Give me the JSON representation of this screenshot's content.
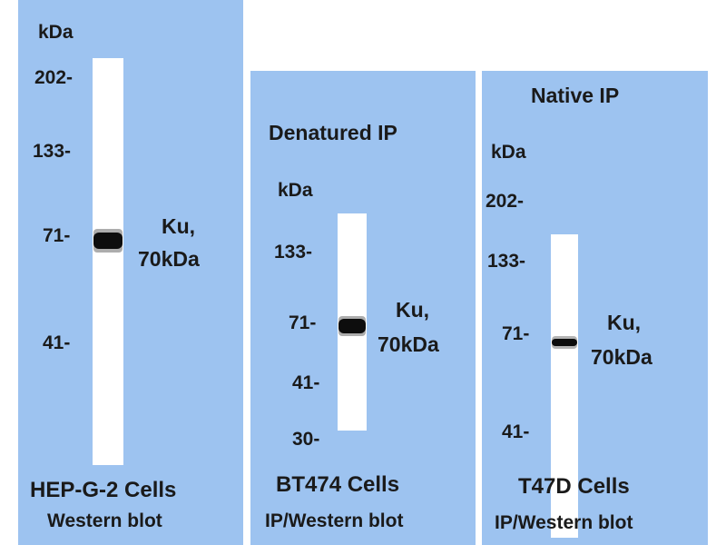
{
  "colors": {
    "panel": "#9dc3f0",
    "lane": "#ffffff",
    "text": "#1a1a1a",
    "band": "#0d0d0d"
  },
  "panels": [
    {
      "kda_label": "kDa",
      "markers": [
        "202-",
        "133-",
        "71-",
        "41-"
      ],
      "band_label_line1": "Ku,",
      "band_label_line2": "70kDa",
      "cells": "HEP-G-2 Cells",
      "method": "Western blot"
    },
    {
      "header": "Denatured IP",
      "kda_label": "kDa",
      "markers": [
        "133-",
        "71-",
        "41-",
        "30-"
      ],
      "band_label_line1": "Ku,",
      "band_label_line2": "70kDa",
      "cells": "BT474 Cells",
      "method": "IP/Western blot"
    },
    {
      "header": "Native IP",
      "kda_label": "kDa",
      "markers": [
        "202-",
        "133-",
        "71-",
        "41-"
      ],
      "band_label_line1": "Ku,",
      "band_label_line2": "70kDa",
      "cells": "T47D Cells",
      "method": "IP/Western blot"
    }
  ]
}
